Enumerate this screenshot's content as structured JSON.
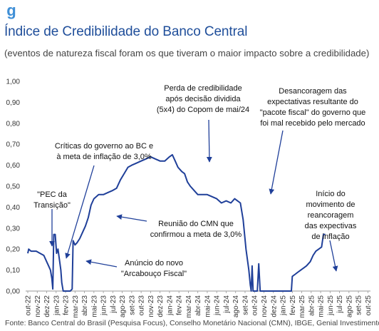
{
  "logo_glyph": "g",
  "title": "Índice de Credibilidade do Banco Central",
  "subtitle": "(eventos de natureza fiscal foram os que tiveram o maior impacto sobre a credibilidade)",
  "source": "Fonte: Banco Central do Brasil (Pesquisa Focus), Conselho Monetário Nacional (CMN), IBGE, Genial Investimentos",
  "colors": {
    "line": "#1f3f99",
    "title": "#1f4e9a",
    "axis": "#999999",
    "logo": "#3f8fd6"
  },
  "chart_data": {
    "type": "line",
    "ylim": [
      0,
      1.0
    ],
    "yticks": [
      "0,00",
      "0,10",
      "0,20",
      "0,30",
      "0,40",
      "0,50",
      "0,60",
      "0,70",
      "0,80",
      "0,90",
      "1,00"
    ],
    "xticks": [
      "out-22",
      "nov-22",
      "dez-22",
      "jan-23",
      "fev-23",
      "mar-23",
      "abr-23",
      "mai-23",
      "jun-23",
      "jul-23",
      "ago-23",
      "set-23",
      "out-23",
      "nov-23",
      "dez-23",
      "jan-24",
      "fev-24",
      "mar-24",
      "abr-24",
      "mai-24",
      "jun-24",
      "jul-24",
      "ago-24",
      "set-24",
      "out-24",
      "nov-24",
      "dez-24",
      "jan-25",
      "fev-25",
      "mar-25",
      "abr-25",
      "mai-25",
      "jun-25",
      "jul-25",
      "ago-25",
      "set-25",
      "out-25"
    ],
    "series": [
      {
        "values": [
          [
            0.0,
            0.18
          ],
          [
            0.1,
            0.2
          ],
          [
            0.35,
            0.19
          ],
          [
            0.6,
            0.19
          ],
          [
            0.9,
            0.19
          ],
          [
            1.3,
            0.18
          ],
          [
            1.7,
            0.17
          ],
          [
            2.0,
            0.14
          ],
          [
            2.2,
            0.12
          ],
          [
            2.4,
            0.1
          ],
          [
            2.55,
            0.06
          ],
          [
            2.65,
            0.01
          ],
          [
            2.75,
            0.27
          ],
          [
            2.9,
            0.27
          ],
          [
            3.05,
            0.18
          ],
          [
            3.2,
            0.2
          ],
          [
            3.35,
            0.15
          ],
          [
            3.5,
            0.1
          ],
          [
            3.6,
            0.04
          ],
          [
            3.75,
            0.0
          ],
          [
            4.5,
            0.0
          ],
          [
            4.7,
            0.01
          ],
          [
            4.8,
            0.24
          ],
          [
            5.0,
            0.22
          ],
          [
            5.2,
            0.23
          ],
          [
            5.5,
            0.25
          ],
          [
            5.8,
            0.28
          ],
          [
            6.1,
            0.31
          ],
          [
            6.4,
            0.35
          ],
          [
            6.7,
            0.41
          ],
          [
            7.0,
            0.44
          ],
          [
            7.5,
            0.46
          ],
          [
            8.0,
            0.46
          ],
          [
            8.5,
            0.47
          ],
          [
            9.0,
            0.48
          ],
          [
            9.4,
            0.49
          ],
          [
            9.8,
            0.53
          ],
          [
            10.2,
            0.56
          ],
          [
            10.6,
            0.59
          ],
          [
            11.0,
            0.6
          ],
          [
            11.5,
            0.61
          ],
          [
            12.0,
            0.62
          ],
          [
            12.5,
            0.63
          ],
          [
            13.0,
            0.64
          ],
          [
            13.5,
            0.63
          ],
          [
            14.0,
            0.62
          ],
          [
            14.5,
            0.62
          ],
          [
            15.0,
            0.64
          ],
          [
            15.3,
            0.65
          ],
          [
            15.6,
            0.62
          ],
          [
            15.9,
            0.59
          ],
          [
            16.3,
            0.57
          ],
          [
            16.6,
            0.56
          ],
          [
            16.9,
            0.52
          ],
          [
            17.2,
            0.5
          ],
          [
            17.6,
            0.48
          ],
          [
            18.0,
            0.46
          ],
          [
            18.5,
            0.46
          ],
          [
            19.0,
            0.46
          ],
          [
            19.5,
            0.45
          ],
          [
            20.0,
            0.44
          ],
          [
            20.5,
            0.42
          ],
          [
            21.0,
            0.43
          ],
          [
            21.5,
            0.42
          ],
          [
            21.9,
            0.44
          ],
          [
            22.2,
            0.43
          ],
          [
            22.5,
            0.42
          ],
          [
            22.8,
            0.34
          ],
          [
            23.1,
            0.2
          ],
          [
            23.4,
            0.1
          ],
          [
            23.55,
            0.03
          ],
          [
            23.65,
            0.0
          ],
          [
            23.75,
            0.12
          ],
          [
            23.85,
            0.0
          ],
          [
            24.3,
            0.0
          ],
          [
            24.45,
            0.13
          ],
          [
            24.6,
            0.0
          ],
          [
            25.0,
            0.0
          ],
          [
            26.0,
            0.0
          ],
          [
            27.0,
            0.0
          ],
          [
            27.5,
            0.0
          ],
          [
            27.9,
            0.0
          ],
          [
            28.0,
            0.07
          ],
          [
            28.3,
            0.08
          ],
          [
            28.6,
            0.09
          ],
          [
            28.9,
            0.1
          ],
          [
            29.2,
            0.11
          ],
          [
            29.5,
            0.12
          ],
          [
            29.9,
            0.14
          ],
          [
            30.2,
            0.17
          ],
          [
            30.5,
            0.19
          ],
          [
            30.8,
            0.2
          ],
          [
            31.1,
            0.21
          ],
          [
            31.3,
            0.27
          ],
          [
            31.5,
            0.27
          ]
        ]
      }
    ],
    "annotations": [
      {
        "lines": [
          "\"PEC da",
          "Transição\""
        ]
      },
      {
        "lines": [
          "Críticas do governo ao BC e",
          "à meta de inflação de 3,0%"
        ]
      },
      {
        "lines": [
          "Anúncio do novo",
          "\"Arcabouço Fiscal\""
        ]
      },
      {
        "lines": [
          "Reunião do CMN que",
          "confirmou a meta de 3,0%"
        ]
      },
      {
        "lines": [
          "Perda de credibilidade",
          "após decisão dividida",
          "(5x4) do Copom de mai/24"
        ]
      },
      {
        "lines": [
          "Desancoragem das",
          "expectativas resultante do",
          "\"pacote fiscal\" do governo que",
          "foi mal recebido pelo mercado"
        ]
      },
      {
        "lines": [
          "Início do",
          "movimento de",
          "reancoragem",
          "das expectivas",
          "de inflação"
        ]
      }
    ]
  }
}
